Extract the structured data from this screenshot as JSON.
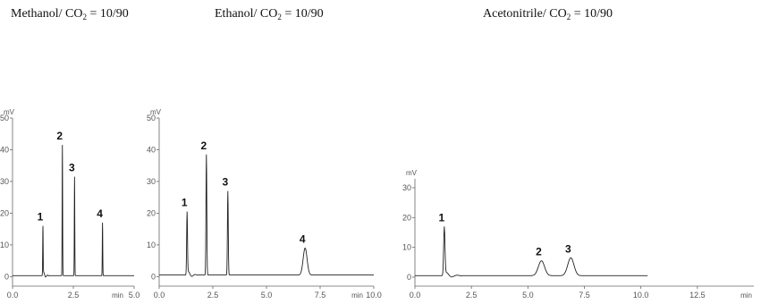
{
  "chart_data": [
    {
      "type": "line",
      "title_prefix": "Methanol/ CO",
      "title_sub": "2",
      "title_suffix": " = 10/90",
      "xlabel": "min",
      "ylabel": "mV",
      "xlim": [
        0,
        5.0
      ],
      "ylim": [
        -3,
        50
      ],
      "xticks": [
        {
          "v": 0.0,
          "label": "0.0"
        },
        {
          "v": 2.5,
          "label": "2.5"
        },
        {
          "v": 5.0,
          "label": "5.0"
        }
      ],
      "yticks": [
        0,
        10,
        20,
        30,
        40,
        50
      ],
      "baseline": 0.3,
      "peaks": [
        {
          "label": "1",
          "t": 1.25,
          "h": 16
        },
        {
          "label": "2",
          "t": 2.05,
          "h": 41.5
        },
        {
          "label": "3",
          "t": 2.55,
          "h": 31.5
        },
        {
          "label": "4",
          "t": 3.7,
          "h": 17
        }
      ]
    },
    {
      "type": "line",
      "title_prefix": "Ethanol/ CO",
      "title_sub": "2",
      "title_suffix": " = 10/90",
      "xlabel": "min",
      "ylabel": "mV",
      "xlim": [
        0,
        10.0
      ],
      "ylim": [
        -3,
        50
      ],
      "xticks": [
        {
          "v": 0.0,
          "label": "0.0"
        },
        {
          "v": 2.5,
          "label": "2.5"
        },
        {
          "v": 5.0,
          "label": "5.0"
        },
        {
          "v": 7.5,
          "label": "7.5"
        },
        {
          "v": 10.0,
          "label": "10.0"
        }
      ],
      "yticks": [
        0,
        10,
        20,
        30,
        40,
        50
      ],
      "baseline": 0.5,
      "peaks": [
        {
          "label": "1",
          "t": 1.3,
          "h": 20.5
        },
        {
          "label": "2",
          "t": 2.2,
          "h": 38.5
        },
        {
          "label": "3",
          "t": 3.2,
          "h": 27
        },
        {
          "label": "4",
          "t": 6.8,
          "h": 9
        }
      ]
    },
    {
      "type": "line",
      "title_prefix": "Acetonitrile/ CO",
      "title_sub": "2",
      "title_suffix": " = 10/90",
      "xlabel": "min",
      "ylabel": "mV",
      "xlim": [
        0,
        15.0
      ],
      "ylim": [
        -3,
        33
      ],
      "xticks": [
        {
          "v": 0.0,
          "label": "0.0"
        },
        {
          "v": 2.5,
          "label": "2.5"
        },
        {
          "v": 5.0,
          "label": "5.0"
        },
        {
          "v": 7.5,
          "label": "7.5"
        },
        {
          "v": 10.0,
          "label": "10.0"
        },
        {
          "v": 12.5,
          "label": "12.5"
        }
      ],
      "yticks": [
        0,
        10,
        20,
        30
      ],
      "baseline": 0.5,
      "trace_end": 10.3,
      "peaks": [
        {
          "label": "1",
          "t": 1.3,
          "h": 17
        },
        {
          "label": "2",
          "t": 5.6,
          "h": 5.5
        },
        {
          "label": "3",
          "t": 6.9,
          "h": 6.5
        }
      ]
    }
  ]
}
